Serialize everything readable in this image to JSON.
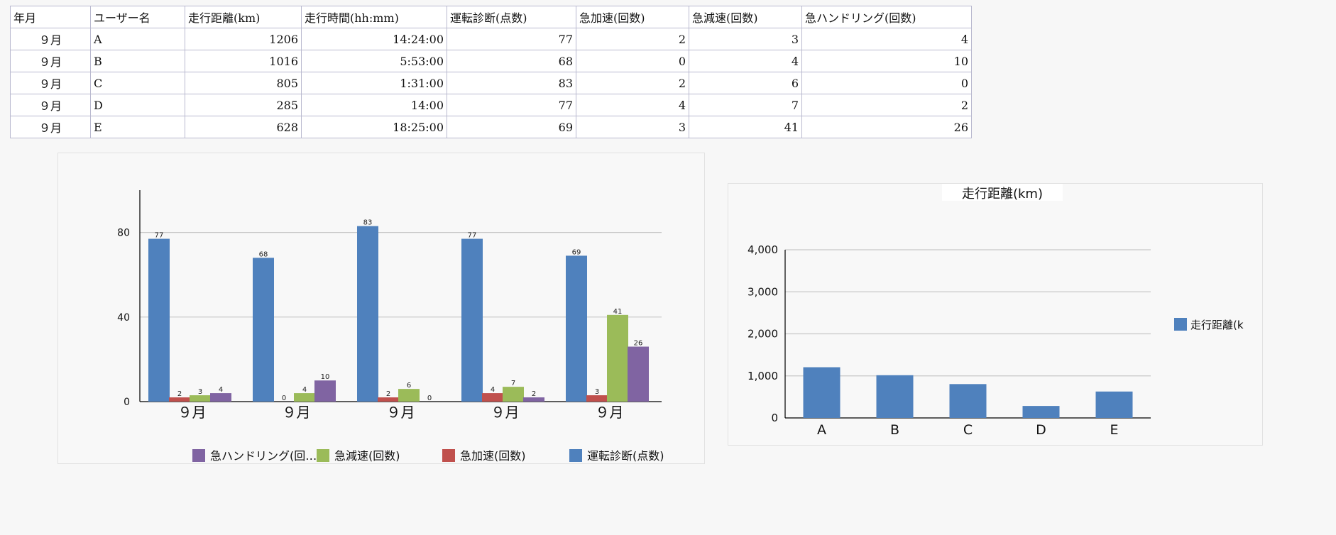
{
  "table": {
    "headers": [
      "年月",
      "ユーザー名",
      "走行距離(km)",
      "走行時間(hh:mm)",
      "運転診断(点数)",
      "急加速(回数)",
      "急減速(回数)",
      "急ハンドリング(回数)"
    ],
    "rows": [
      [
        "９月",
        "A",
        "1206",
        "14:24:00",
        "77",
        "2",
        "3",
        "4"
      ],
      [
        "９月",
        "B",
        "1016",
        "5:53:00",
        "68",
        "0",
        "4",
        "10"
      ],
      [
        "９月",
        "C",
        "805",
        "1:31:00",
        "83",
        "2",
        "6",
        "0"
      ],
      [
        "９月",
        "D",
        "285",
        "14:00",
        "77",
        "4",
        "7",
        "2"
      ],
      [
        "９月",
        "E",
        "628",
        "18:25:00",
        "69",
        "3",
        "41",
        "26"
      ]
    ]
  },
  "chart_data": [
    {
      "type": "bar",
      "categories": [
        "９月",
        "９月",
        "９月",
        "９月",
        "９月"
      ],
      "series": [
        {
          "name": "運転診断(点数)",
          "values": [
            77,
            68,
            83,
            77,
            69
          ],
          "color": "#4f81bd"
        },
        {
          "name": "急加速(回数)",
          "values": [
            2,
            0,
            2,
            4,
            3
          ],
          "color": "#c0504d"
        },
        {
          "name": "急減速(回数)",
          "values": [
            3,
            4,
            6,
            7,
            41
          ],
          "color": "#9bbb59"
        },
        {
          "name": "急ハンドリング(回数)",
          "values": [
            4,
            10,
            0,
            2,
            26
          ],
          "color": "#8064a2"
        }
      ],
      "legend_labels": [
        "急ハンドリング(回…",
        "急減速(回数)",
        "急加速(回数)",
        "運転診断(点数)"
      ],
      "ylim": [
        0,
        100
      ],
      "yticks": [
        "0",
        "40",
        "80"
      ],
      "ytick_values": [
        0,
        40,
        80
      ],
      "grid": true,
      "legend": "bottom",
      "data_labels": true
    },
    {
      "type": "bar",
      "title": "走行距離(km)",
      "categories": [
        "A",
        "B",
        "C",
        "D",
        "E"
      ],
      "series": [
        {
          "name": "走行距離(km)",
          "values": [
            1206,
            1016,
            805,
            285,
            628
          ],
          "color": "#4f81bd"
        }
      ],
      "legend_labels": [
        "走行距離(k"
      ],
      "ylim": [
        0,
        4000
      ],
      "yticks": [
        "0",
        "1,000",
        "2,000",
        "3,000",
        "4,000"
      ],
      "ytick_values": [
        0,
        1000,
        2000,
        3000,
        4000
      ],
      "grid": true,
      "legend": "right"
    }
  ]
}
